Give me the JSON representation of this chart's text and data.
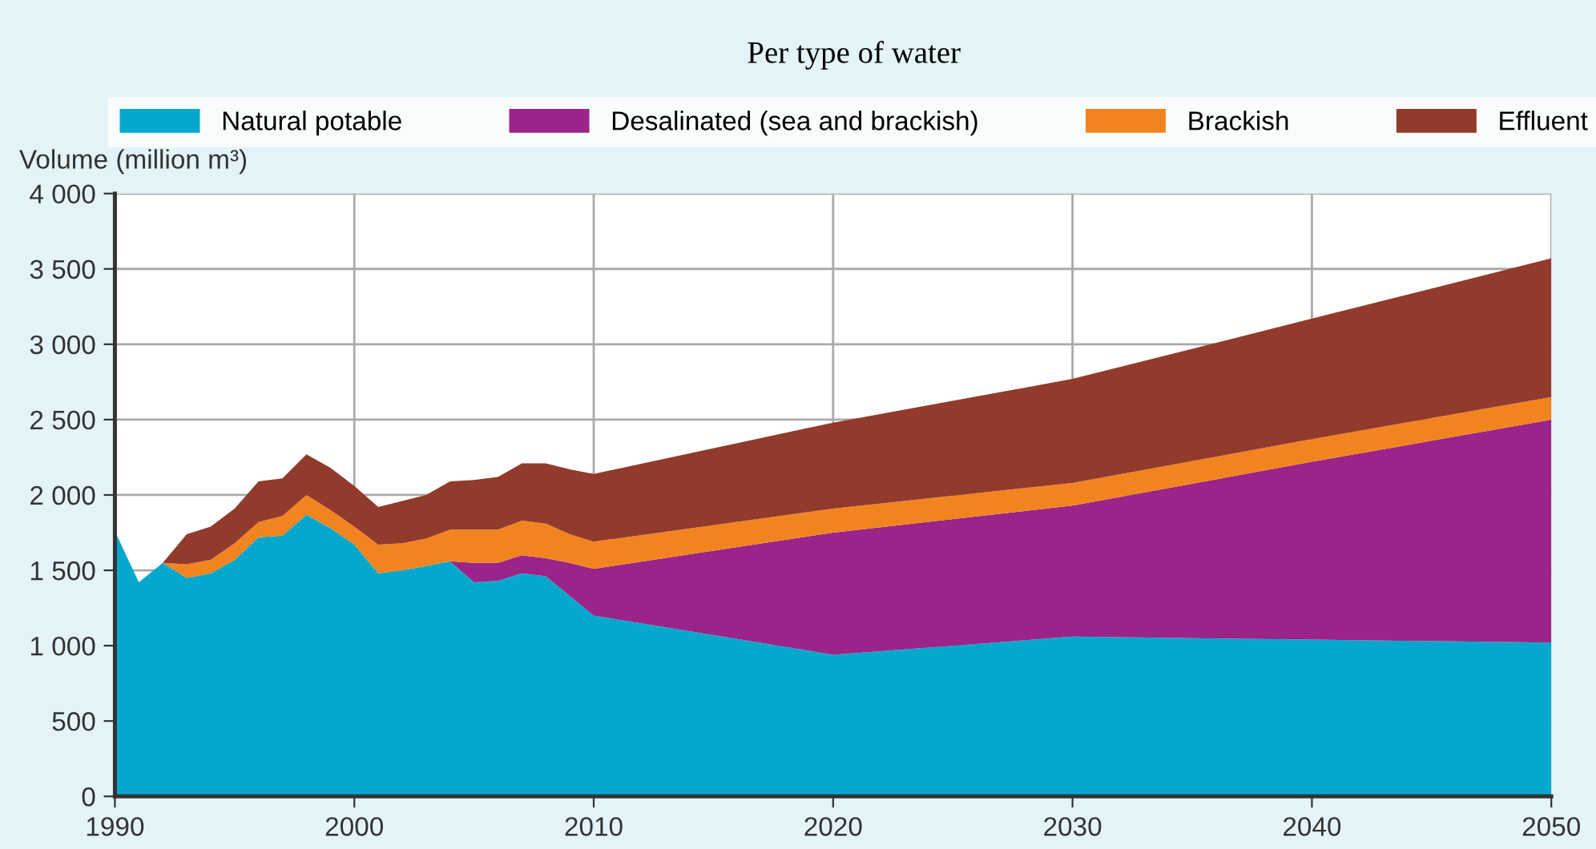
{
  "chart_data": {
    "type": "area",
    "stacked": true,
    "subtitle": "Per type of water",
    "ylabel": "Volume (million m³)",
    "x": [
      1990,
      1991,
      1992,
      1993,
      1994,
      1995,
      1996,
      1997,
      1998,
      1999,
      2000,
      2001,
      2002,
      2003,
      2004,
      2005,
      2006,
      2007,
      2008,
      2009,
      2010,
      2020,
      2030,
      2040,
      2050
    ],
    "series": [
      {
        "name": "Natural potable",
        "color": "#05a8cc",
        "values": [
          1760,
          1420,
          1550,
          1450,
          1480,
          1570,
          1720,
          1730,
          1870,
          1780,
          1670,
          1480,
          1500,
          1530,
          1560,
          1420,
          1430,
          1480,
          1460,
          1330,
          1200,
          940,
          1060,
          1040,
          1020
        ]
      },
      {
        "name": "Desalinated (sea and brackish)",
        "color": "#9a2489",
        "values": [
          0,
          0,
          0,
          0,
          0,
          0,
          0,
          0,
          0,
          0,
          0,
          0,
          0,
          0,
          0,
          130,
          120,
          120,
          120,
          220,
          310,
          810,
          870,
          1180,
          1480
        ]
      },
      {
        "name": "Brackish",
        "color": "#f28420",
        "values": [
          0,
          0,
          0,
          90,
          90,
          110,
          100,
          130,
          130,
          120,
          120,
          190,
          180,
          180,
          210,
          220,
          220,
          230,
          230,
          190,
          180,
          160,
          150,
          150,
          150
        ]
      },
      {
        "name": "Effluent",
        "color": "#923a2b",
        "values": [
          0,
          0,
          0,
          200,
          220,
          230,
          270,
          250,
          270,
          280,
          270,
          250,
          280,
          290,
          320,
          330,
          350,
          380,
          400,
          430,
          450,
          570,
          690,
          800,
          920
        ]
      }
    ],
    "xlim": [
      1990,
      2050
    ],
    "xticks": [
      1990,
      2000,
      2010,
      2020,
      2030,
      2040,
      2050
    ],
    "ylim": [
      0,
      4000
    ],
    "yticks": [
      0,
      500,
      {
        "value": 1000,
        "label": "1 000"
      },
      {
        "value": 1500,
        "label": "1 500"
      },
      {
        "value": 2000,
        "label": "2 000"
      },
      {
        "value": 2500,
        "label": "2 500"
      },
      {
        "value": 3000,
        "label": "3 000"
      },
      {
        "value": 3500,
        "label": "3 500"
      },
      {
        "value": 4000,
        "label": "4 000"
      }
    ],
    "grid": true,
    "legend": "top"
  }
}
